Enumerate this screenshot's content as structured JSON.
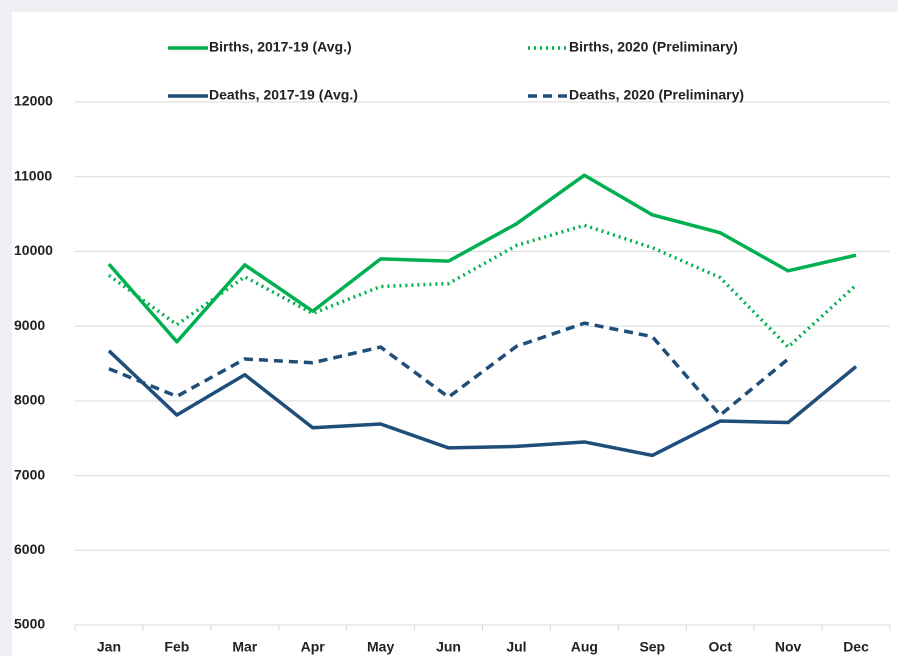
{
  "chart_data": {
    "type": "line",
    "categories": [
      "Jan",
      "Feb",
      "Mar",
      "Apr",
      "May",
      "Jun",
      "Jul",
      "Aug",
      "Sep",
      "Oct",
      "Nov",
      "Dec"
    ],
    "series": [
      {
        "name": "Births, 2017-19 (Avg.)",
        "color": "#00b050",
        "style": "solid",
        "values": [
          9830,
          8790,
          9820,
          9200,
          9900,
          9870,
          10370,
          11020,
          10490,
          10250,
          9740,
          9950
        ]
      },
      {
        "name": "Births, 2020 (Preliminary)",
        "color": "#00b050",
        "style": "dotted",
        "values": [
          9680,
          9020,
          9660,
          9170,
          9530,
          9570,
          10080,
          10350,
          10050,
          9650,
          8720,
          9550
        ]
      },
      {
        "name": "Deaths, 2017-19 (Avg.)",
        "color": "#1f4e79",
        "style": "solid",
        "values": [
          8670,
          7810,
          8350,
          7640,
          7690,
          7370,
          7390,
          7450,
          7270,
          7730,
          7710,
          8460
        ]
      },
      {
        "name": "Deaths, 2020 (Preliminary)",
        "color": "#1f4e79",
        "style": "dashed",
        "values": [
          8430,
          8060,
          8560,
          8510,
          8720,
          8050,
          8730,
          9040,
          8860,
          7810,
          8560,
          null
        ]
      }
    ],
    "ylim": [
      5000,
      12000
    ],
    "yticks": [
      5000,
      6000,
      7000,
      8000,
      9000,
      10000,
      11000,
      12000
    ],
    "grid": true,
    "legend": "top"
  }
}
